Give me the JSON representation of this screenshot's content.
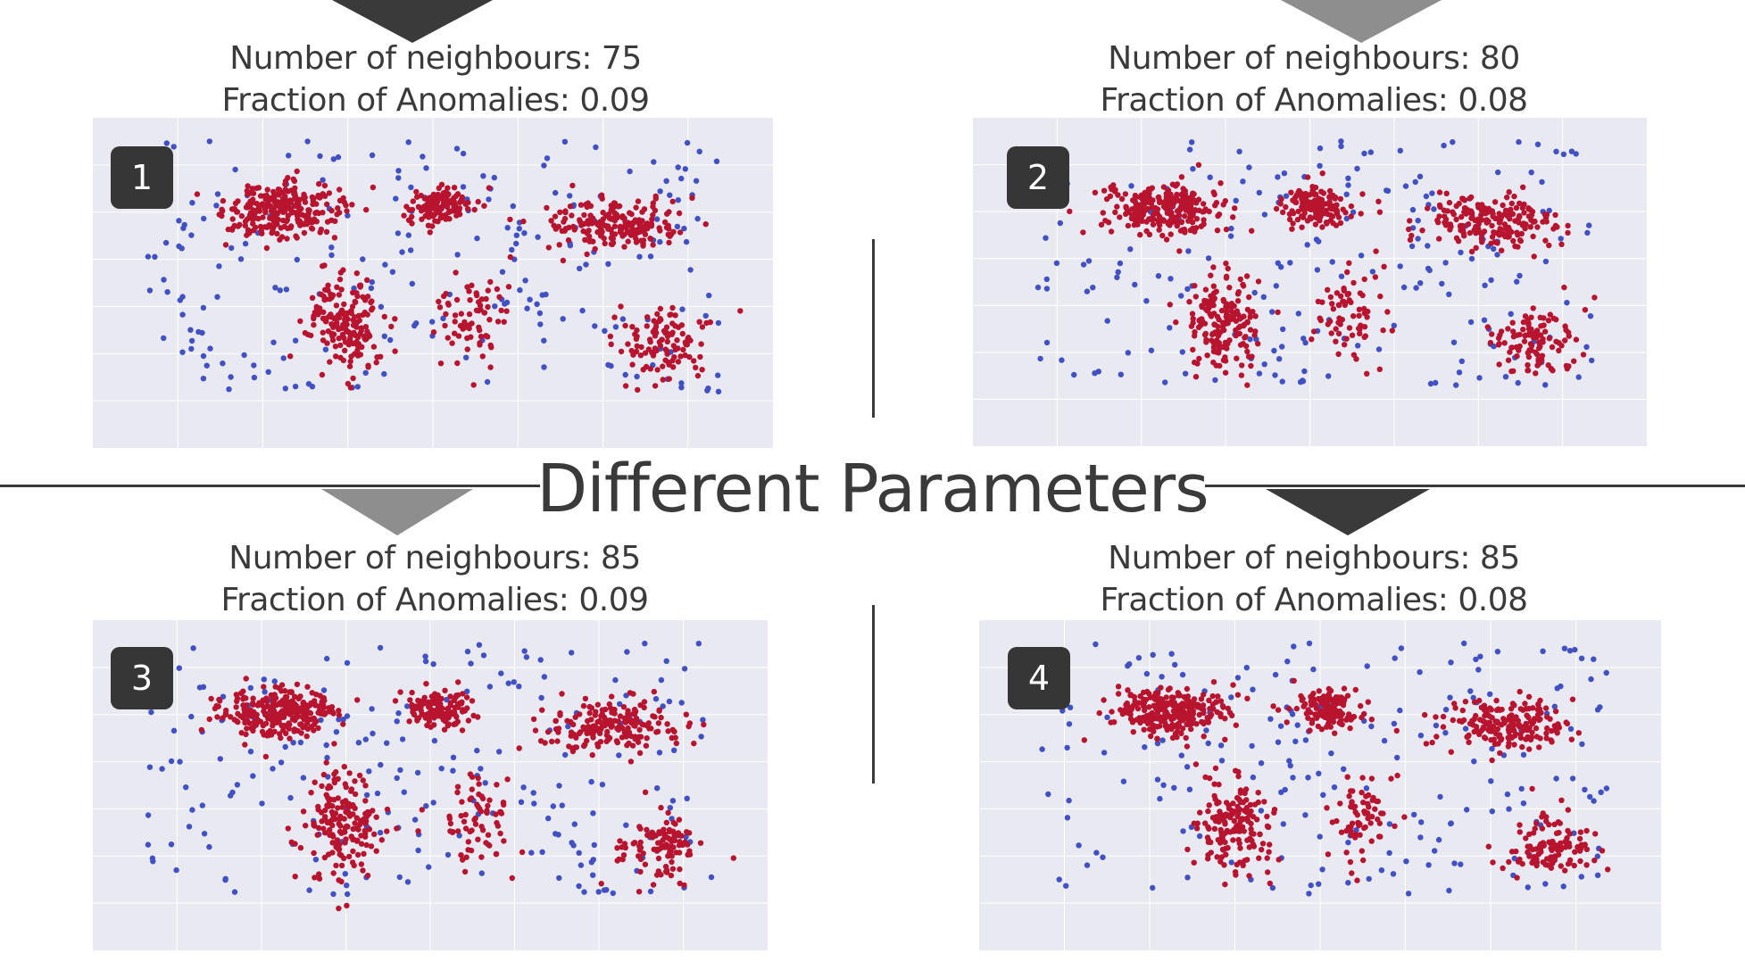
{
  "heading": "Different Parameters",
  "colors": {
    "normal": "#4150c2",
    "anomaly": "#b8142f",
    "plot_bg": "#e9e9f1",
    "grid": "#ffffff"
  },
  "panels": [
    {
      "badge": "1",
      "neighbours_label": "Number of neighbours: 75",
      "fraction_label": "Fraction of Anomalies: 0.09"
    },
    {
      "badge": "2",
      "neighbours_label": "Number of neighbours: 80",
      "fraction_label": "Fraction of Anomalies: 0.08"
    },
    {
      "badge": "3",
      "neighbours_label": "Number of neighbours: 85",
      "fraction_label": "Fraction of Anomalies: 0.09"
    },
    {
      "badge": "4",
      "neighbours_label": "Number of neighbours: 85",
      "fraction_label": "Fraction of Anomalies: 0.08"
    }
  ],
  "chart_data": [
    {
      "type": "scatter",
      "n_neighbors": 75,
      "contamination": 0.09,
      "legend": "none",
      "grid": true,
      "series": [
        {
          "color": "#b8142f",
          "clusters": [
            {
              "region": "north-america",
              "cx": 0.28,
              "cy": 0.28,
              "rx": 0.08,
              "ry": 0.07,
              "n": 260
            },
            {
              "region": "south-america",
              "cx": 0.37,
              "cy": 0.62,
              "rx": 0.05,
              "ry": 0.14,
              "n": 170
            },
            {
              "region": "europe",
              "cx": 0.51,
              "cy": 0.27,
              "rx": 0.045,
              "ry": 0.05,
              "n": 140
            },
            {
              "region": "africa",
              "cx": 0.56,
              "cy": 0.6,
              "rx": 0.05,
              "ry": 0.12,
              "n": 70
            },
            {
              "region": "asia",
              "cx": 0.77,
              "cy": 0.32,
              "rx": 0.09,
              "ry": 0.07,
              "n": 190
            },
            {
              "region": "oceania",
              "cx": 0.84,
              "cy": 0.68,
              "rx": 0.06,
              "ry": 0.1,
              "n": 110
            }
          ]
        },
        {
          "color": "#4150c2",
          "clusters": [
            {
              "region": "scattered",
              "cx": 0.5,
              "cy": 0.45,
              "rx": 0.42,
              "ry": 0.38,
              "n": 220
            }
          ]
        }
      ]
    },
    {
      "type": "scatter",
      "n_neighbors": 80,
      "contamination": 0.08,
      "legend": "none",
      "grid": true,
      "series": [
        {
          "color": "#b8142f",
          "clusters": [
            {
              "region": "north-america",
              "cx": 0.28,
              "cy": 0.28,
              "rx": 0.08,
              "ry": 0.07,
              "n": 260
            },
            {
              "region": "south-america",
              "cx": 0.37,
              "cy": 0.62,
              "rx": 0.05,
              "ry": 0.14,
              "n": 170
            },
            {
              "region": "europe",
              "cx": 0.51,
              "cy": 0.27,
              "rx": 0.045,
              "ry": 0.05,
              "n": 140
            },
            {
              "region": "africa",
              "cx": 0.56,
              "cy": 0.6,
              "rx": 0.05,
              "ry": 0.12,
              "n": 70
            },
            {
              "region": "asia",
              "cx": 0.77,
              "cy": 0.32,
              "rx": 0.09,
              "ry": 0.07,
              "n": 190
            },
            {
              "region": "oceania",
              "cx": 0.84,
              "cy": 0.68,
              "rx": 0.06,
              "ry": 0.1,
              "n": 110
            }
          ]
        },
        {
          "color": "#4150c2",
          "clusters": [
            {
              "region": "scattered",
              "cx": 0.5,
              "cy": 0.45,
              "rx": 0.42,
              "ry": 0.38,
              "n": 200
            }
          ]
        }
      ]
    },
    {
      "type": "scatter",
      "n_neighbors": 85,
      "contamination": 0.09,
      "legend": "none",
      "grid": true,
      "series": [
        {
          "color": "#b8142f",
          "clusters": [
            {
              "region": "north-america",
              "cx": 0.28,
              "cy": 0.28,
              "rx": 0.08,
              "ry": 0.07,
              "n": 260
            },
            {
              "region": "south-america",
              "cx": 0.37,
              "cy": 0.62,
              "rx": 0.05,
              "ry": 0.14,
              "n": 170
            },
            {
              "region": "europe",
              "cx": 0.51,
              "cy": 0.27,
              "rx": 0.045,
              "ry": 0.05,
              "n": 140
            },
            {
              "region": "africa",
              "cx": 0.56,
              "cy": 0.6,
              "rx": 0.05,
              "ry": 0.12,
              "n": 70
            },
            {
              "region": "asia",
              "cx": 0.77,
              "cy": 0.32,
              "rx": 0.09,
              "ry": 0.07,
              "n": 190
            },
            {
              "region": "oceania",
              "cx": 0.84,
              "cy": 0.68,
              "rx": 0.06,
              "ry": 0.1,
              "n": 110
            }
          ]
        },
        {
          "color": "#4150c2",
          "clusters": [
            {
              "region": "scattered",
              "cx": 0.5,
              "cy": 0.45,
              "rx": 0.42,
              "ry": 0.38,
              "n": 220
            }
          ]
        }
      ]
    },
    {
      "type": "scatter",
      "n_neighbors": 85,
      "contamination": 0.08,
      "legend": "none",
      "grid": true,
      "series": [
        {
          "color": "#b8142f",
          "clusters": [
            {
              "region": "north-america",
              "cx": 0.28,
              "cy": 0.28,
              "rx": 0.08,
              "ry": 0.07,
              "n": 260
            },
            {
              "region": "south-america",
              "cx": 0.37,
              "cy": 0.62,
              "rx": 0.05,
              "ry": 0.14,
              "n": 170
            },
            {
              "region": "europe",
              "cx": 0.51,
              "cy": 0.27,
              "rx": 0.045,
              "ry": 0.05,
              "n": 140
            },
            {
              "region": "africa",
              "cx": 0.56,
              "cy": 0.6,
              "rx": 0.05,
              "ry": 0.12,
              "n": 70
            },
            {
              "region": "asia",
              "cx": 0.77,
              "cy": 0.32,
              "rx": 0.09,
              "ry": 0.07,
              "n": 190
            },
            {
              "region": "oceania",
              "cx": 0.84,
              "cy": 0.68,
              "rx": 0.06,
              "ry": 0.1,
              "n": 110
            }
          ]
        },
        {
          "color": "#4150c2",
          "clusters": [
            {
              "region": "scattered",
              "cx": 0.5,
              "cy": 0.45,
              "rx": 0.42,
              "ry": 0.38,
              "n": 200
            }
          ]
        }
      ]
    }
  ]
}
